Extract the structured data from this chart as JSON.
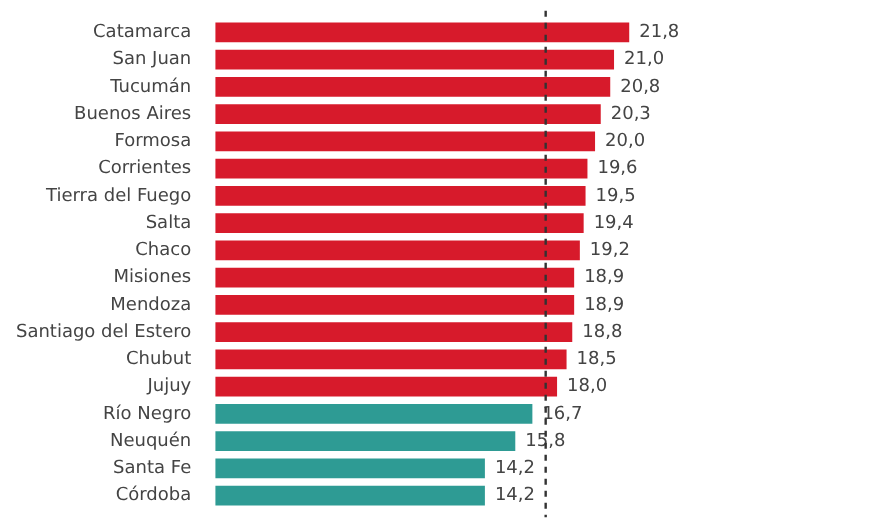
{
  "chart_data": {
    "type": "bar",
    "orientation": "horizontal",
    "categories": [
      "Catamarca",
      "San Juan",
      "Tucumán",
      "Buenos Aires",
      "Formosa",
      "Corrientes",
      "Tierra del Fuego",
      "Salta",
      "Chaco",
      "Misiones",
      "Mendoza",
      "Santiago del Estero",
      "Chubut",
      "Jujuy",
      "Río Negro",
      "Neuquén",
      "Santa Fe",
      "Córdoba"
    ],
    "values": [
      21.8,
      21.0,
      20.8,
      20.3,
      20.0,
      19.6,
      19.5,
      19.4,
      19.2,
      18.9,
      18.9,
      18.8,
      18.5,
      18.0,
      16.7,
      15.8,
      14.2,
      14.2
    ],
    "value_labels": [
      "21,8",
      "21,0",
      "20,8",
      "20,3",
      "20,0",
      "19,6",
      "19,5",
      "19,4",
      "19,2",
      "18,9",
      "18,9",
      "18,8",
      "18,5",
      "18,0",
      "16,7",
      "15,8",
      "14,2",
      "14,2"
    ],
    "colors": [
      "#d71a2b",
      "#d71a2b",
      "#d71a2b",
      "#d71a2b",
      "#d71a2b",
      "#d71a2b",
      "#d71a2b",
      "#d71a2b",
      "#d71a2b",
      "#d71a2b",
      "#d71a2b",
      "#d71a2b",
      "#d71a2b",
      "#d71a2b",
      "#2e9b94",
      "#2e9b94",
      "#2e9b94",
      "#2e9b94"
    ],
    "ref_lines": [
      {
        "axis": "x",
        "value": 17.4,
        "color": "#333333",
        "line_style": "dashed"
      }
    ],
    "legend": false
  }
}
